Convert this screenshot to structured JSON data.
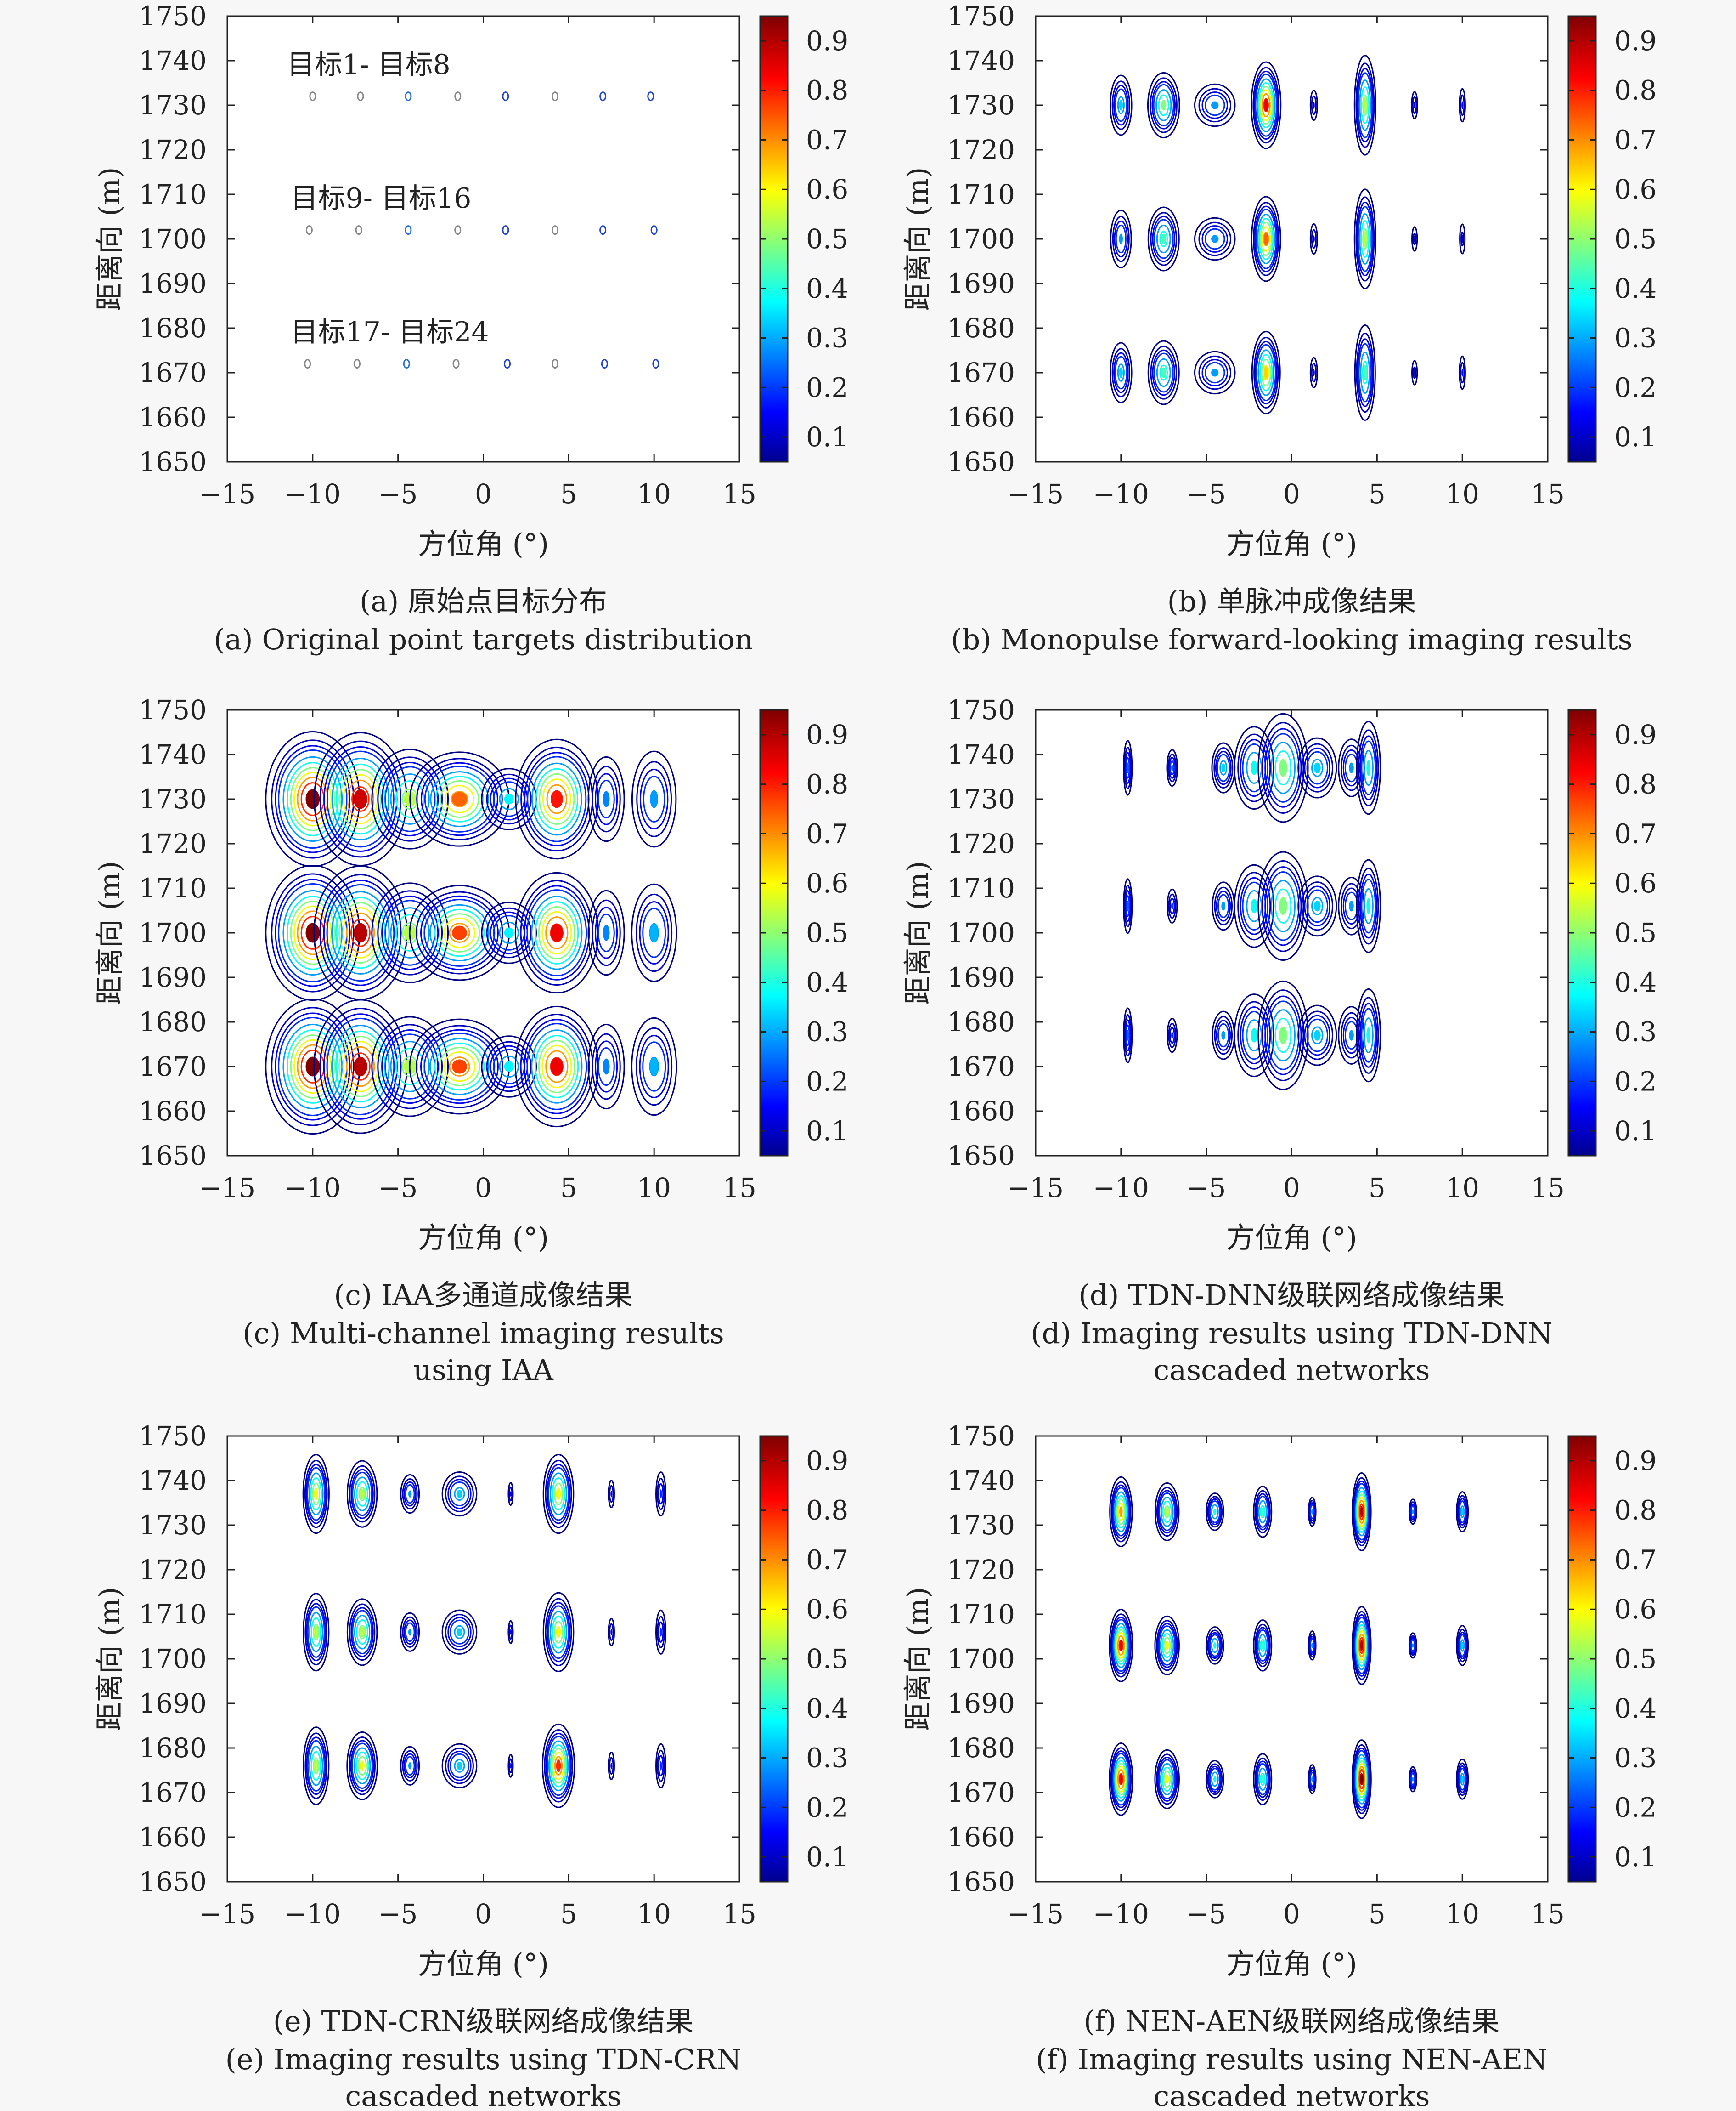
{
  "colorbar": {
    "ticks": [
      "0.1",
      "0.2",
      "0.3",
      "0.4",
      "0.5",
      "0.6",
      "0.7",
      "0.8",
      "0.9"
    ],
    "tick_values": [
      0.1,
      0.2,
      0.3,
      0.4,
      0.5,
      0.6,
      0.7,
      0.8,
      0.9
    ],
    "range": [
      0.05,
      0.95
    ],
    "colormap": "jet"
  },
  "chart_data": [
    {
      "id": "a",
      "type": "scatter",
      "xlabel": "方位角 (°)",
      "ylabel": "距离向 (m)",
      "xlim": [
        -15,
        15
      ],
      "ylim": [
        1650,
        1750
      ],
      "xticks": [
        "−15",
        "−10",
        "−5",
        "0",
        "5",
        "10",
        "15"
      ],
      "yticks": [
        "1650",
        "1660",
        "1670",
        "1680",
        "1690",
        "1700",
        "1710",
        "1720",
        "1730",
        "1740",
        "1750"
      ],
      "caption_cn": "(a) 原始点目标分布",
      "caption_en": [
        "(a) Original point targets distribution"
      ],
      "annotations": [
        {
          "text": "目标1- 目标8",
          "x": -11.5,
          "y": 1737
        },
        {
          "text": "目标9- 目标16",
          "x": -11.3,
          "y": 1707
        },
        {
          "text": "目标17- 目标24",
          "x": -11.3,
          "y": 1677
        }
      ],
      "targets": [
        {
          "x": -10.0,
          "y": 1732
        },
        {
          "x": -7.2,
          "y": 1732
        },
        {
          "x": -4.4,
          "y": 1732
        },
        {
          "x": -1.5,
          "y": 1732
        },
        {
          "x": 1.3,
          "y": 1732
        },
        {
          "x": 4.2,
          "y": 1732
        },
        {
          "x": 7.0,
          "y": 1732
        },
        {
          "x": 9.8,
          "y": 1732
        },
        {
          "x": -10.2,
          "y": 1702
        },
        {
          "x": -7.3,
          "y": 1702
        },
        {
          "x": -4.4,
          "y": 1702
        },
        {
          "x": -1.5,
          "y": 1702
        },
        {
          "x": 1.3,
          "y": 1702
        },
        {
          "x": 4.2,
          "y": 1702
        },
        {
          "x": 7.0,
          "y": 1702
        },
        {
          "x": 10.0,
          "y": 1702
        },
        {
          "x": -10.3,
          "y": 1672
        },
        {
          "x": -7.4,
          "y": 1672
        },
        {
          "x": -4.5,
          "y": 1672
        },
        {
          "x": -1.6,
          "y": 1672
        },
        {
          "x": 1.4,
          "y": 1672
        },
        {
          "x": 4.2,
          "y": 1672
        },
        {
          "x": 7.1,
          "y": 1672
        },
        {
          "x": 10.1,
          "y": 1672
        }
      ]
    },
    {
      "id": "b",
      "type": "heatmap",
      "xlabel": "方位角 (°)",
      "ylabel": "距离向 (m)",
      "xlim": [
        -15,
        15
      ],
      "ylim": [
        1650,
        1750
      ],
      "xticks": [
        "−15",
        "−10",
        "−5",
        "0",
        "5",
        "10",
        "15"
      ],
      "yticks": [
        "1650",
        "1660",
        "1670",
        "1680",
        "1690",
        "1700",
        "1710",
        "1720",
        "1730",
        "1740",
        "1750"
      ],
      "caption_cn": "(b) 单脉冲成像结果",
      "caption_en": [
        "(b) Monopulse forward-looking imaging results"
      ],
      "rows": [
        1730,
        1700,
        1670
      ],
      "x": [
        -10,
        -7.5,
        -4.5,
        -1.5,
        1.3,
        4.3,
        7.2,
        10
      ],
      "peaks": [
        [
          0.35,
          0.5,
          0.3,
          0.85,
          0.15,
          0.55,
          0.15,
          0.15
        ],
        [
          0.3,
          0.45,
          0.3,
          0.75,
          0.15,
          0.55,
          0.12,
          0.12
        ],
        [
          0.35,
          0.45,
          0.3,
          0.65,
          0.15,
          0.45,
          0.12,
          0.15
        ]
      ],
      "sx": [
        0.28,
        0.38,
        0.55,
        0.32,
        0.12,
        0.25,
        0.1,
        0.1
      ],
      "sy": [
        3.0,
        3.0,
        2.2,
        3.6,
        2.0,
        4.5,
        1.8,
        2.2
      ]
    },
    {
      "id": "c",
      "type": "heatmap",
      "xlabel": "方位角 (°)",
      "ylabel": "距离向 (m)",
      "xlim": [
        -15,
        15
      ],
      "ylim": [
        1650,
        1750
      ],
      "xticks": [
        "−15",
        "−10",
        "−5",
        "0",
        "5",
        "10",
        "15"
      ],
      "yticks": [
        "1650",
        "1660",
        "1670",
        "1680",
        "1690",
        "1700",
        "1710",
        "1720",
        "1730",
        "1740",
        "1750"
      ],
      "caption_cn": "(c) IAA多通道成像结果",
      "caption_en": [
        "(c) Multi-channel imaging results",
        "using IAA"
      ],
      "rows": [
        1730,
        1700,
        1670
      ],
      "x": [
        -10,
        -7.2,
        -4.3,
        -1.4,
        1.5,
        4.3,
        7.2,
        10
      ],
      "peaks": [
        [
          0.95,
          0.88,
          0.55,
          0.75,
          0.38,
          0.82,
          0.28,
          0.3
        ],
        [
          0.95,
          0.9,
          0.55,
          0.78,
          0.38,
          0.85,
          0.28,
          0.32
        ],
        [
          0.95,
          0.9,
          0.55,
          0.78,
          0.38,
          0.85,
          0.28,
          0.32
        ]
      ],
      "sx": [
        1.0,
        1.0,
        0.9,
        1.1,
        0.7,
        0.9,
        0.5,
        0.6
      ],
      "sy": [
        5.5,
        5.5,
        4.5,
        4.0,
        3.0,
        5.0,
        4.5,
        5.0
      ]
    },
    {
      "id": "d",
      "type": "heatmap",
      "xlabel": "方位角 (°)",
      "ylabel": "距离向 (m)",
      "xlim": [
        -15,
        15
      ],
      "ylim": [
        1650,
        1750
      ],
      "xticks": [
        "−15",
        "−10",
        "−5",
        "0",
        "5",
        "10",
        "15"
      ],
      "yticks": [
        "1650",
        "1660",
        "1670",
        "1680",
        "1690",
        "1700",
        "1710",
        "1720",
        "1730",
        "1740",
        "1750"
      ],
      "caption_cn": "(d) TDN-DNN级联网络成像结果",
      "caption_en": [
        "(d) Imaging results using TDN-DNN",
        "cascaded networks"
      ],
      "rows": [
        1737,
        1706,
        1677
      ],
      "x": [
        -9.6,
        -7.0,
        -4.0,
        -2.2,
        -0.5,
        1.5,
        3.5,
        4.5
      ],
      "peaks": [
        [
          0.25,
          0.25,
          0.35,
          0.4,
          0.5,
          0.35,
          0.3,
          0.4
        ],
        [
          0.25,
          0.2,
          0.3,
          0.4,
          0.5,
          0.35,
          0.3,
          0.4
        ],
        [
          0.25,
          0.2,
          0.3,
          0.4,
          0.5,
          0.35,
          0.3,
          0.4
        ]
      ],
      "sx": [
        0.12,
        0.15,
        0.3,
        0.5,
        0.6,
        0.5,
        0.35,
        0.3
      ],
      "sy": [
        3.0,
        2.0,
        2.5,
        4.0,
        5.0,
        3.0,
        3.0,
        4.5
      ]
    },
    {
      "id": "e",
      "type": "heatmap",
      "xlabel": "方位角 (°)",
      "ylabel": "距离向 (m)",
      "xlim": [
        -15,
        15
      ],
      "ylim": [
        1650,
        1750
      ],
      "xticks": [
        "−15",
        "−10",
        "−5",
        "0",
        "5",
        "10",
        "15"
      ],
      "yticks": [
        "1650",
        "1660",
        "1670",
        "1680",
        "1690",
        "1700",
        "1710",
        "1720",
        "1730",
        "1740",
        "1750"
      ],
      "caption_cn": "(e) TDN-CRN级联网络成像结果",
      "caption_en": [
        "(e) Imaging results using TDN-CRN",
        "cascaded networks"
      ],
      "rows": [
        1737,
        1706,
        1676
      ],
      "x": [
        -9.8,
        -7.1,
        -4.3,
        -1.4,
        1.6,
        4.4,
        7.5,
        10.4
      ],
      "peaks": [
        [
          0.6,
          0.55,
          0.3,
          0.35,
          0.15,
          0.6,
          0.15,
          0.2
        ],
        [
          0.55,
          0.55,
          0.3,
          0.35,
          0.15,
          0.6,
          0.15,
          0.2
        ],
        [
          0.55,
          0.6,
          0.3,
          0.35,
          0.15,
          0.8,
          0.15,
          0.2
        ]
      ],
      "sx": [
        0.3,
        0.35,
        0.25,
        0.45,
        0.08,
        0.35,
        0.1,
        0.15
      ],
      "sy": [
        3.5,
        3.0,
        2.0,
        2.2,
        1.5,
        3.5,
        1.8,
        2.6
      ]
    },
    {
      "id": "f",
      "type": "heatmap",
      "xlabel": "方位角 (°)",
      "ylabel": "距离向 (m)",
      "xlim": [
        -15,
        15
      ],
      "ylim": [
        1650,
        1750
      ],
      "xticks": [
        "−15",
        "−10",
        "−5",
        "0",
        "5",
        "10",
        "15"
      ],
      "yticks": [
        "1650",
        "1660",
        "1670",
        "1680",
        "1690",
        "1700",
        "1710",
        "1720",
        "1730",
        "1740",
        "1750"
      ],
      "caption_cn": "(f) NEN-AEN级联网络成像结果",
      "caption_en": [
        "(f) Imaging results using NEN-AEN",
        "cascaded networks"
      ],
      "rows": [
        1733,
        1703,
        1673
      ],
      "x": [
        -10.0,
        -7.3,
        -4.5,
        -1.7,
        1.2,
        4.1,
        7.1,
        10.0
      ],
      "peaks": [
        [
          0.7,
          0.55,
          0.4,
          0.45,
          0.3,
          0.9,
          0.3,
          0.35
        ],
        [
          0.85,
          0.6,
          0.4,
          0.45,
          0.3,
          0.9,
          0.3,
          0.35
        ],
        [
          0.85,
          0.6,
          0.4,
          0.45,
          0.3,
          0.95,
          0.3,
          0.35
        ]
      ],
      "sx": [
        0.25,
        0.28,
        0.22,
        0.22,
        0.1,
        0.2,
        0.1,
        0.15
      ],
      "sy": [
        3.0,
        2.6,
        1.8,
        2.4,
        1.5,
        3.2,
        1.3,
        2.0
      ]
    }
  ]
}
